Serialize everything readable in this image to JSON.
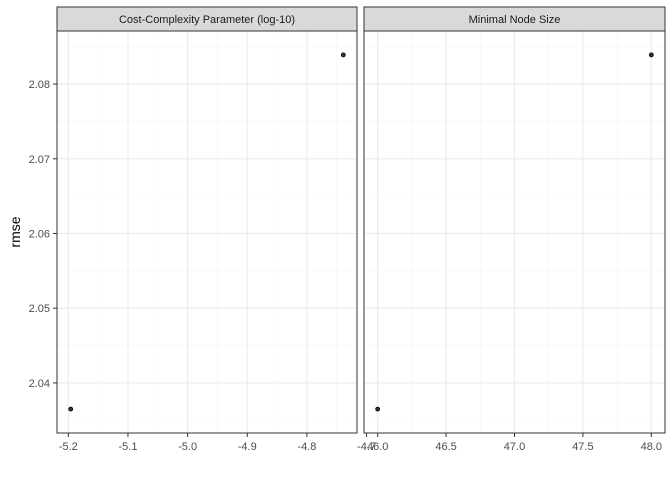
{
  "chart_data": {
    "type": "scatter",
    "ylabel": "rmse",
    "ylim": [
      2.0333,
      2.0871
    ],
    "y_ticks": [
      2.04,
      2.05,
      2.06,
      2.07,
      2.08
    ],
    "y_tick_labels": [
      "2.04",
      "2.05",
      "2.06",
      "2.07",
      "2.08"
    ],
    "grid": true,
    "panels": [
      {
        "strip": "Cost-Complexity Parameter (log-10)",
        "xlim": [
          -5.219,
          -4.716
        ],
        "x_ticks": [
          -5.2,
          -5.1,
          -5.0,
          -4.9,
          -4.8,
          -4.7
        ],
        "x_tick_labels": [
          "-5.2",
          "-5.1",
          "-5.0",
          "-4.9",
          "-4.8",
          "-4.7"
        ],
        "points": [
          {
            "x": -5.196,
            "y": 2.0365
          },
          {
            "x": -4.739,
            "y": 2.0839
          }
        ]
      },
      {
        "strip": "Minimal Node Size",
        "xlim": [
          45.9,
          48.1
        ],
        "x_ticks": [
          46.0,
          46.5,
          47.0,
          47.5,
          48.0
        ],
        "x_tick_labels": [
          "46.0",
          "46.5",
          "47.0",
          "47.5",
          "48.0"
        ],
        "points": [
          {
            "x": 46.0,
            "y": 2.0365
          },
          {
            "x": 48.0,
            "y": 2.0839
          }
        ]
      }
    ]
  },
  "colors": {
    "point_fill": "#333333",
    "point_stroke": "#000000",
    "strip_fill": "#d9d9d9",
    "grid_major": "#ebebeb",
    "grid_minor": "#f5f5f5",
    "panel_border": "#333333"
  }
}
